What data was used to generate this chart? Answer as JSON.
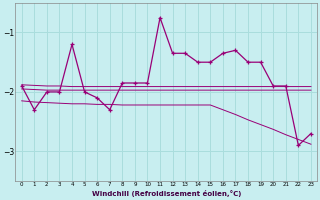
{
  "xlabel": "Windchill (Refroidissement éolien,°C)",
  "background_color": "#c8eef0",
  "grid_color": "#aadddd",
  "line_color": "#990077",
  "x": [
    0,
    1,
    2,
    3,
    4,
    5,
    6,
    7,
    8,
    9,
    10,
    11,
    12,
    13,
    14,
    15,
    16,
    17,
    18,
    19,
    20,
    21,
    22,
    23
  ],
  "y_main": [
    -1.9,
    -2.3,
    -2.0,
    -2.0,
    -1.2,
    -2.0,
    -2.1,
    -2.3,
    -1.85,
    -1.85,
    -1.85,
    -0.75,
    -1.35,
    -1.35,
    -1.5,
    -1.5,
    -1.35,
    -1.3,
    -1.5,
    -1.5,
    -1.9,
    -1.9,
    -2.9,
    -2.7
  ],
  "y_trend1": [
    -1.95,
    -1.96,
    -1.97,
    -1.97,
    -1.97,
    -1.97,
    -1.97,
    -1.97,
    -1.97,
    -1.97,
    -1.97,
    -1.97,
    -1.97,
    -1.97,
    -1.97,
    -1.97,
    -1.97,
    -1.97,
    -1.97,
    -1.97,
    -1.97,
    -1.97,
    -1.97,
    -1.97
  ],
  "y_trend2": [
    -1.88,
    -1.89,
    -1.9,
    -1.9,
    -1.91,
    -1.91,
    -1.91,
    -1.91,
    -1.91,
    -1.91,
    -1.91,
    -1.91,
    -1.91,
    -1.91,
    -1.91,
    -1.91,
    -1.91,
    -1.91,
    -1.91,
    -1.91,
    -1.91,
    -1.91,
    -1.91,
    -1.91
  ],
  "y_trend3": [
    -2.15,
    -2.17,
    -2.18,
    -2.19,
    -2.2,
    -2.2,
    -2.21,
    -2.21,
    -2.22,
    -2.22,
    -2.22,
    -2.22,
    -2.22,
    -2.22,
    -2.22,
    -2.22,
    -2.3,
    -2.38,
    -2.47,
    -2.55,
    -2.63,
    -2.72,
    -2.8,
    -2.88
  ],
  "ylim": [
    -3.5,
    -0.5
  ],
  "yticks": [
    -3.0,
    -2.0,
    -1.0
  ],
  "xlim": [
    -0.5,
    23.5
  ]
}
